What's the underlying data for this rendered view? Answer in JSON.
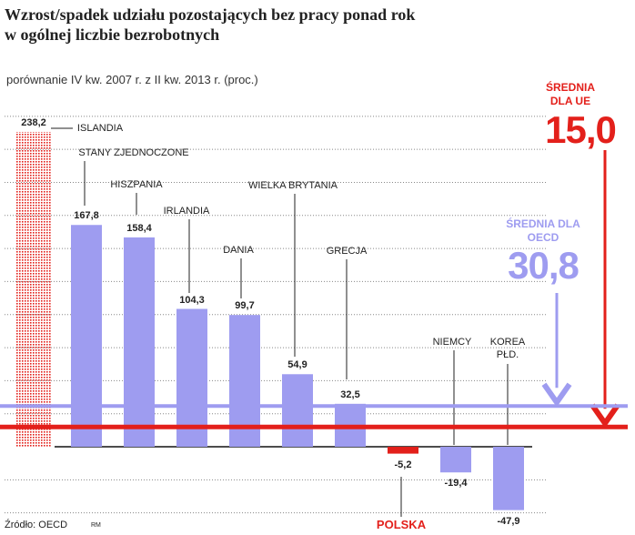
{
  "chart_data": {
    "type": "bar",
    "title": [
      "Wzrost/spadek udziału pozostających bez pracy ponad rok",
      "w ogólnej liczbie bezrobotnych"
    ],
    "subtitle": "porównanie IV kw. 2007 r. z II kw. 2013 r. (proc.)",
    "categories": [
      "ISLANDIA",
      "STANY ZJEDNOCZONE",
      "HISZPANIA",
      "IRLANDIA",
      "DANIA",
      "WIELKA BRYTANIA",
      "GRECJA",
      "POLSKA",
      "NIEMCY",
      "KOREA PŁD."
    ],
    "values": [
      238.2,
      167.8,
      158.4,
      104.3,
      99.7,
      54.9,
      32.5,
      -5.2,
      -19.4,
      -47.9
    ],
    "value_labels": [
      "238,2",
      "167,8",
      "158,4",
      "104,3",
      "99,7",
      "54,9",
      "32,5",
      "-5,2",
      "-19,4",
      "-47,9"
    ],
    "color": "#9e9cf0",
    "bar_colors": [
      "#e3201b",
      "#9e9cf0",
      "#9e9cf0",
      "#9e9cf0",
      "#9e9cf0",
      "#9e9cf0",
      "#9e9cf0",
      "#e3201b",
      "#9e9cf0",
      "#9e9cf0"
    ],
    "bar_styles": [
      "dotted",
      "solid",
      "solid",
      "solid",
      "solid",
      "solid",
      "solid",
      "solid",
      "solid",
      "solid"
    ],
    "reference_lines": [
      {
        "name": "ŚREDNIA DLA UE",
        "value": 15.0,
        "value_label": "15,0",
        "color": "#e3201b"
      },
      {
        "name": "ŚREDNIA DLA OECD",
        "value": 30.8,
        "value_label": "30,8",
        "color": "#9e9cf0"
      }
    ],
    "ylim": [
      -60,
      260
    ],
    "yticks": [
      -50,
      -25,
      0,
      25,
      50,
      75,
      100,
      125,
      150,
      175,
      200,
      225,
      250
    ],
    "grid": true,
    "source": "Źródło: OECD",
    "credit": "RM"
  }
}
